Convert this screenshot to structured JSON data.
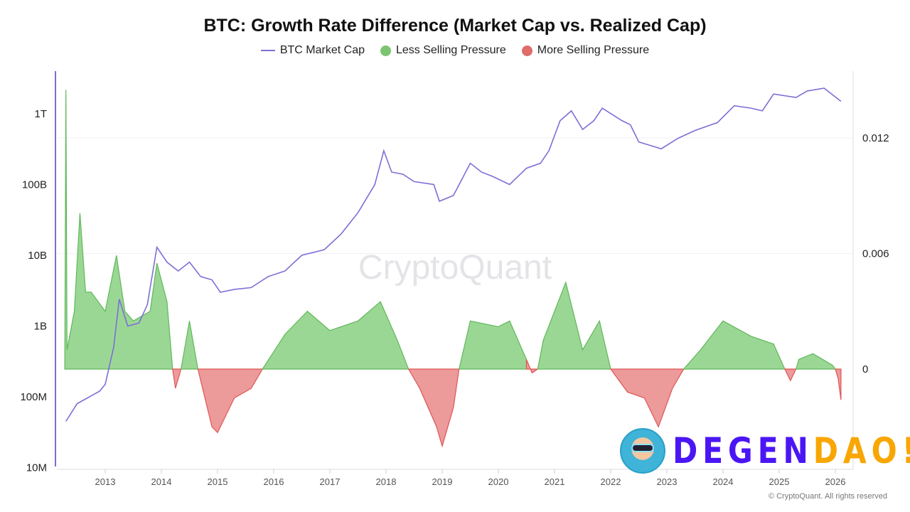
{
  "chart_data": {
    "type": "line+area",
    "title": "BTC: Growth Rate Difference (Market Cap vs. Realized Cap)",
    "legend": [
      {
        "name": "BTC Market Cap",
        "kind": "line",
        "color": "#7b6fd6"
      },
      {
        "name": "Less Selling Pressure",
        "kind": "area",
        "color": "#8fd18a"
      },
      {
        "name": "More Selling Pressure",
        "kind": "area",
        "color": "#e88b8b"
      }
    ],
    "legend_position": "top-center",
    "x_ticks": [
      "2013",
      "2014",
      "2015",
      "2016",
      "2017",
      "2018",
      "2019",
      "2020",
      "2021",
      "2022",
      "2023",
      "2024",
      "2025",
      "2026"
    ],
    "left_axis": {
      "scale": "log",
      "ticks": [
        {
          "v": 10000000.0,
          "label": "10M"
        },
        {
          "v": 100000000.0,
          "label": "100M"
        },
        {
          "v": 1000000000.0,
          "label": "1B"
        },
        {
          "v": 10000000000.0,
          "label": "10B"
        },
        {
          "v": 100000000000.0,
          "label": "100B"
        },
        {
          "v": 1000000000000.0,
          "label": "1T"
        }
      ]
    },
    "right_axis": {
      "scale": "linear",
      "ticks": [
        {
          "v": 0,
          "label": "0"
        },
        {
          "v": 0.006,
          "label": "0.006"
        },
        {
          "v": 0.012,
          "label": "0.012"
        }
      ]
    },
    "grid": true,
    "market_cap": [
      [
        2012.3,
        45000000.0
      ],
      [
        2012.5,
        80000000.0
      ],
      [
        2012.9,
        120000000.0
      ],
      [
        2013.0,
        150000000.0
      ],
      [
        2013.15,
        500000000.0
      ],
      [
        2013.25,
        2400000000.0
      ],
      [
        2013.4,
        1000000000.0
      ],
      [
        2013.6,
        1100000000.0
      ],
      [
        2013.75,
        2000000000.0
      ],
      [
        2013.92,
        13000000000.0
      ],
      [
        2014.1,
        8000000000.0
      ],
      [
        2014.3,
        6000000000.0
      ],
      [
        2014.5,
        8000000000.0
      ],
      [
        2014.7,
        5000000000.0
      ],
      [
        2014.9,
        4500000000.0
      ],
      [
        2015.05,
        3000000000.0
      ],
      [
        2015.3,
        3300000000.0
      ],
      [
        2015.6,
        3500000000.0
      ],
      [
        2015.9,
        5000000000.0
      ],
      [
        2016.2,
        6000000000.0
      ],
      [
        2016.5,
        10000000000.0
      ],
      [
        2016.9,
        12000000000.0
      ],
      [
        2017.2,
        20000000000.0
      ],
      [
        2017.5,
        40000000000.0
      ],
      [
        2017.8,
        100000000000.0
      ],
      [
        2017.96,
        300000000000.0
      ],
      [
        2018.1,
        150000000000.0
      ],
      [
        2018.3,
        140000000000.0
      ],
      [
        2018.5,
        110000000000.0
      ],
      [
        2018.85,
        100000000000.0
      ],
      [
        2018.95,
        58000000000.0
      ],
      [
        2019.2,
        70000000000.0
      ],
      [
        2019.5,
        200000000000.0
      ],
      [
        2019.7,
        150000000000.0
      ],
      [
        2019.9,
        130000000000.0
      ],
      [
        2020.2,
        100000000000.0
      ],
      [
        2020.5,
        170000000000.0
      ],
      [
        2020.75,
        200000000000.0
      ],
      [
        2020.9,
        300000000000.0
      ],
      [
        2021.1,
        800000000000.0
      ],
      [
        2021.3,
        1100000000000.0
      ],
      [
        2021.5,
        600000000000.0
      ],
      [
        2021.7,
        800000000000.0
      ],
      [
        2021.85,
        1200000000000.0
      ],
      [
        2022.2,
        800000000000.0
      ],
      [
        2022.35,
        700000000000.0
      ],
      [
        2022.5,
        400000000000.0
      ],
      [
        2022.9,
        320000000000.0
      ],
      [
        2023.2,
        450000000000.0
      ],
      [
        2023.5,
        580000000000.0
      ],
      [
        2023.9,
        750000000000.0
      ],
      [
        2024.2,
        1300000000000.0
      ],
      [
        2024.5,
        1200000000000.0
      ],
      [
        2024.7,
        1100000000000.0
      ],
      [
        2024.9,
        1900000000000.0
      ],
      [
        2025.3,
        1700000000000.0
      ],
      [
        2025.5,
        2100000000000.0
      ],
      [
        2025.8,
        2300000000000.0
      ],
      [
        2026.1,
        1500000000000.0
      ]
    ],
    "growth_rate_difference": [
      [
        2012.28,
        0
      ],
      [
        2012.3,
        0.0145
      ],
      [
        2012.32,
        0.001
      ],
      [
        2012.45,
        0.003
      ],
      [
        2012.55,
        0.0081
      ],
      [
        2012.65,
        0.004
      ],
      [
        2012.75,
        0.004
      ],
      [
        2013.0,
        0.003
      ],
      [
        2013.2,
        0.0059
      ],
      [
        2013.35,
        0.003
      ],
      [
        2013.5,
        0.0025
      ],
      [
        2013.8,
        0.003
      ],
      [
        2013.92,
        0.0055
      ],
      [
        2014.1,
        0.0035
      ],
      [
        2014.2,
        0
      ],
      [
        2014.25,
        -0.001
      ],
      [
        2014.35,
        0
      ],
      [
        2014.5,
        0.0025
      ],
      [
        2014.65,
        0
      ],
      [
        2014.9,
        -0.003
      ],
      [
        2015.0,
        -0.0033
      ],
      [
        2015.3,
        -0.0015
      ],
      [
        2015.6,
        -0.001
      ],
      [
        2015.8,
        0
      ],
      [
        2016.2,
        0.0018
      ],
      [
        2016.6,
        0.003
      ],
      [
        2017.0,
        0.002
      ],
      [
        2017.5,
        0.0025
      ],
      [
        2017.9,
        0.0035
      ],
      [
        2018.2,
        0.0015
      ],
      [
        2018.4,
        0
      ],
      [
        2018.6,
        -0.001
      ],
      [
        2018.9,
        -0.003
      ],
      [
        2019.0,
        -0.004
      ],
      [
        2019.2,
        -0.002
      ],
      [
        2019.3,
        0
      ],
      [
        2019.5,
        0.0025
      ],
      [
        2020.0,
        0.0022
      ],
      [
        2020.2,
        0.0025
      ],
      [
        2020.5,
        0.0005
      ],
      [
        2020.6,
        -0.0002
      ],
      [
        2020.7,
        0
      ],
      [
        2020.8,
        0.0015
      ],
      [
        2021.2,
        0.0045
      ],
      [
        2021.5,
        0.001
      ],
      [
        2021.8,
        0.0025
      ],
      [
        2022.0,
        0
      ],
      [
        2022.3,
        -0.0012
      ],
      [
        2022.6,
        -0.0015
      ],
      [
        2022.85,
        -0.003
      ],
      [
        2023.1,
        -0.001
      ],
      [
        2023.3,
        0
      ],
      [
        2023.6,
        0.001
      ],
      [
        2024.0,
        0.0025
      ],
      [
        2024.5,
        0.0017
      ],
      [
        2024.9,
        0.0013
      ],
      [
        2025.1,
        0
      ],
      [
        2025.2,
        -0.0006
      ],
      [
        2025.3,
        0
      ],
      [
        2025.35,
        0.0005
      ],
      [
        2025.6,
        0.0008
      ],
      [
        2025.95,
        0.0002
      ],
      [
        2026.0,
        0
      ],
      [
        2026.05,
        -0.0005
      ],
      [
        2026.1,
        -0.0016
      ]
    ]
  },
  "watermark": "CryptoQuant",
  "copyright": "© CryptoQuant. All rights reserved",
  "logo": {
    "part1": "DEGEN",
    "part2": "DAO!",
    "colors": [
      "#4b16f5",
      "#f9a602"
    ]
  }
}
